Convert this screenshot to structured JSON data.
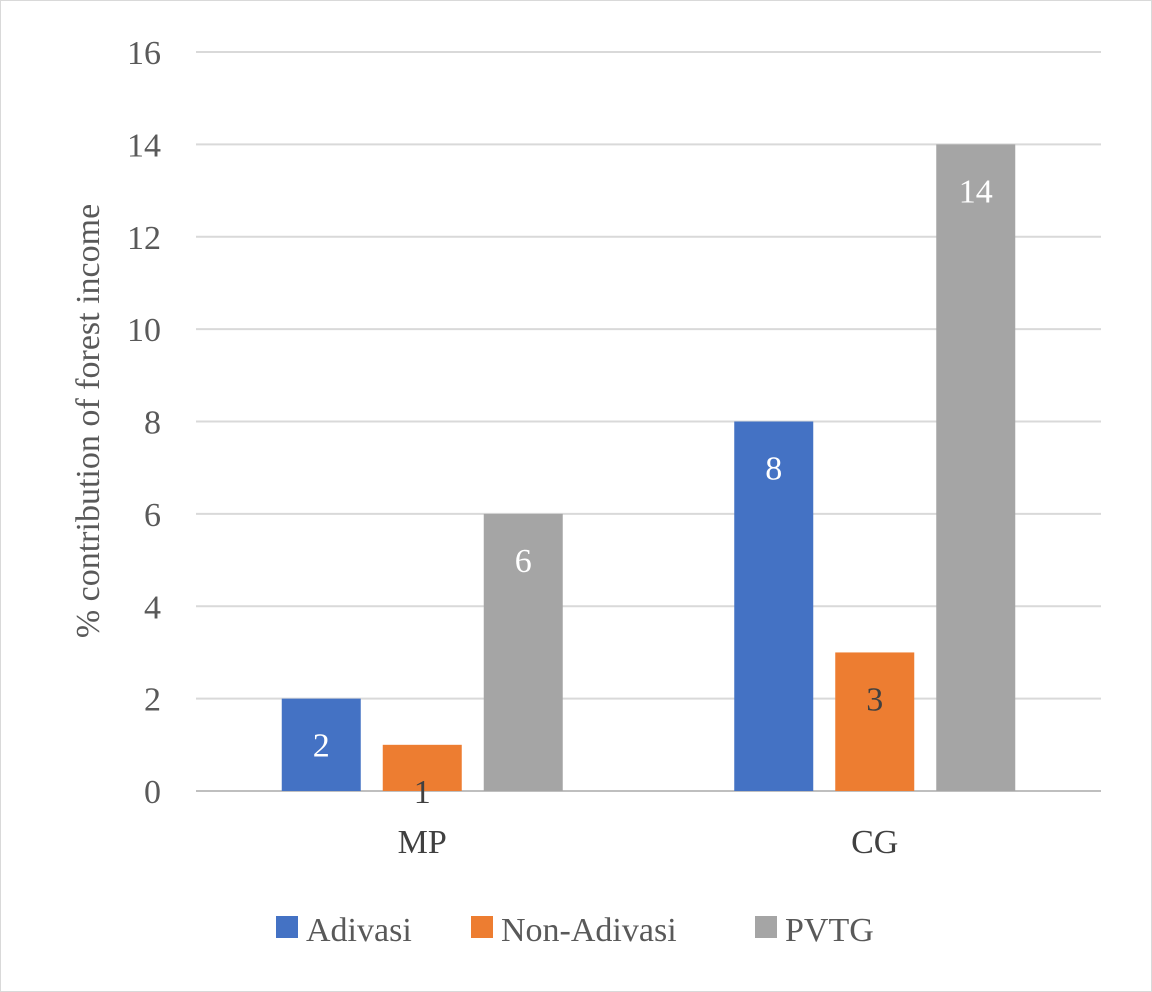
{
  "chart_data": {
    "type": "bar",
    "categories": [
      "MP",
      "CG"
    ],
    "series": [
      {
        "name": "Adivasi",
        "values": [
          2,
          8
        ],
        "color": "#4472C4",
        "label_color": "#ffffff"
      },
      {
        "name": "Non-Adivasi",
        "values": [
          1,
          3
        ],
        "color": "#ED7D31",
        "label_color": "#404040"
      },
      {
        "name": "PVTG",
        "values": [
          6,
          14
        ],
        "color": "#A5A5A5",
        "label_color": "#ffffff"
      }
    ],
    "title": "",
    "xlabel": "",
    "ylabel": "% contribution of forest income",
    "ylim": [
      0,
      16
    ],
    "yticks": [
      0,
      2,
      4,
      6,
      8,
      10,
      12,
      14,
      16
    ],
    "grid": true,
    "legend_position": "bottom"
  },
  "colors": {
    "grid": "#d9d9d9",
    "axis": "#bfbfbf"
  }
}
